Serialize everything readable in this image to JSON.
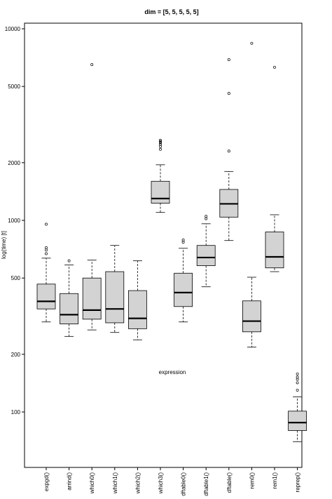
{
  "chart_data": {
    "type": "boxplot",
    "title": "dim = [5, 5, 5, 5, 5]",
    "xlabel": "expression",
    "ylabel": "log(time) [t]",
    "yscale": "log",
    "ylim": [
      60,
      10500
    ],
    "yticks": [
      100,
      200,
      500,
      1000,
      2000,
      5000,
      10000
    ],
    "grid": false,
    "colors": {
      "box_fill": "#d3d3d3",
      "stroke": "#000000"
    },
    "categories": [
      "expgd()",
      "arrind()",
      "which0()",
      "which1()",
      "which2()",
      "which3()",
      "dftable0()",
      "dftable1()",
      "dftable()",
      "rem0()",
      "rem1()",
      "reprep()"
    ],
    "boxes": [
      {
        "whisker_low": 295,
        "q1": 345,
        "median": 378,
        "q3": 465,
        "whisker_high": 635,
        "outliers": [
          955,
          720,
          700,
          670
        ]
      },
      {
        "whisker_low": 248,
        "q1": 288,
        "median": 322,
        "q3": 415,
        "whisker_high": 585,
        "outliers": [
          615
        ]
      },
      {
        "whisker_low": 268,
        "q1": 305,
        "median": 340,
        "q3": 500,
        "whisker_high": 620,
        "outliers": [
          6500
        ]
      },
      {
        "whisker_low": 260,
        "q1": 292,
        "median": 345,
        "q3": 540,
        "whisker_high": 740,
        "outliers": []
      },
      {
        "whisker_low": 238,
        "q1": 272,
        "median": 308,
        "q3": 430,
        "whisker_high": 615,
        "outliers": []
      },
      {
        "whisker_low": 1100,
        "q1": 1230,
        "median": 1300,
        "q3": 1600,
        "whisker_high": 1950,
        "outliers": [
          2350,
          2430,
          2490,
          2540,
          2580,
          2620
        ]
      },
      {
        "whisker_low": 295,
        "q1": 355,
        "median": 420,
        "q3": 530,
        "whisker_high": 715,
        "outliers": [
          770,
          790
        ]
      },
      {
        "whisker_low": 450,
        "q1": 580,
        "median": 640,
        "q3": 740,
        "whisker_high": 960,
        "outliers": [
          1020,
          1050
        ]
      },
      {
        "whisker_low": 785,
        "q1": 1040,
        "median": 1220,
        "q3": 1450,
        "whisker_high": 1800,
        "outliers": [
          2300,
          4600,
          6900
        ]
      },
      {
        "whisker_low": 218,
        "q1": 262,
        "median": 298,
        "q3": 380,
        "whisker_high": 505,
        "outliers": [
          8400
        ]
      },
      {
        "whisker_low": 540,
        "q1": 565,
        "median": 645,
        "q3": 870,
        "whisker_high": 1070,
        "outliers": [
          6300
        ]
      },
      {
        "whisker_low": 70,
        "q1": 80,
        "median": 88,
        "q3": 101,
        "whisker_high": 120,
        "outliers": [
          130,
          142,
          148,
          152,
          158
        ]
      }
    ]
  }
}
